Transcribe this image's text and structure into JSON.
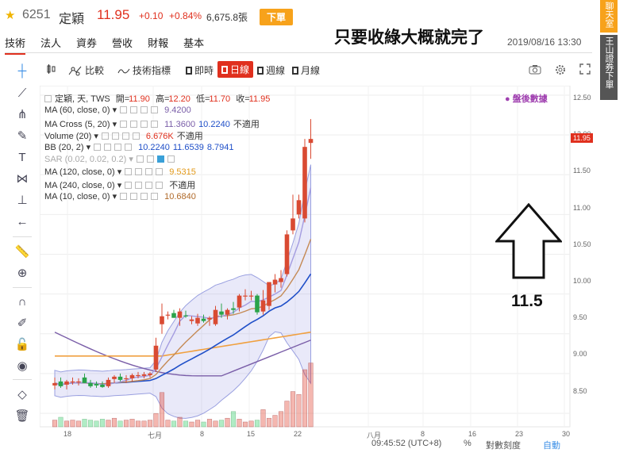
{
  "header": {
    "code": "6251",
    "name": "定穎",
    "price": "11.95",
    "change": "+0.10",
    "change_pct": "+0.84%",
    "volume": "6,675.8張",
    "order_button": "下單"
  },
  "tabs": [
    {
      "label": "技術",
      "active": true
    },
    {
      "label": "法人"
    },
    {
      "label": "資券"
    },
    {
      "label": "營收"
    },
    {
      "label": "財報"
    },
    {
      "label": "基本"
    }
  ],
  "annotation": {
    "title": "只要收綠大概就完了",
    "value": "11.5"
  },
  "datetime": "2019/08/16 13:30",
  "toolbar": {
    "compare": "比較",
    "indicators": "技術指標",
    "intraday": "即時",
    "daily": "日線",
    "weekly": "週線",
    "monthly": "月線"
  },
  "right_sidebar": {
    "chat": "聊天室",
    "broker": "王山證券下單"
  },
  "ohlc_line": {
    "name": "定穎, 天, TWS",
    "open_label": "開=",
    "open": "11.90",
    "high_label": "高=",
    "high": "12.20",
    "low_label": "低=",
    "low": "11.70",
    "close_label": "收=",
    "close": "11.95"
  },
  "after_hours_label": "盤後數據",
  "indicators": [
    {
      "name": "MA (60, close, 0)",
      "values": [
        "9.4200"
      ],
      "colors": [
        "#7a5ea8"
      ]
    },
    {
      "name": "MA Cross (5, 20)",
      "values": [
        "11.3600",
        "10.2240",
        "不適用"
      ],
      "colors": [
        "#7a5ea8",
        "#1f4fc8",
        "#333333"
      ]
    },
    {
      "name": "Volume (20)",
      "values": [
        "6.676K",
        "不適用"
      ],
      "colors": [
        "#e0301e",
        "#333333"
      ]
    },
    {
      "name": "BB (20, 2)",
      "values": [
        "10.2240",
        "11.6539",
        "8.7941"
      ],
      "colors": [
        "#1f4fc8",
        "#1f4fc8",
        "#1f4fc8"
      ]
    },
    {
      "name": "SAR (0.02, 0.02, 0.2)",
      "values": [],
      "colors": [],
      "muted": true
    },
    {
      "name": "MA (120, close, 0)",
      "values": [
        "9.5315"
      ],
      "colors": [
        "#e39a1a"
      ]
    },
    {
      "name": "MA (240, close, 0)",
      "values": [
        "不適用"
      ],
      "colors": [
        "#333333"
      ]
    },
    {
      "name": "MA (10, close, 0)",
      "values": [
        "10.6840"
      ],
      "colors": [
        "#b06a2a"
      ]
    }
  ],
  "y_axis": [
    "12.50",
    "12.00",
    "11.50",
    "11.00",
    "10.50",
    "10.00",
    "9.50",
    "9.00",
    "8.50"
  ],
  "price_badge": "11.95",
  "x_axis": [
    "18",
    "七月",
    "8",
    "15",
    "22",
    "八月",
    "8",
    "16",
    "23",
    "30"
  ],
  "bottom": {
    "time": "09:45:52 (UTC+8)",
    "percent": "%",
    "log": "對數刻度",
    "auto": "自動"
  },
  "candles": [
    {
      "o": 8.85,
      "h": 8.95,
      "l": 8.8,
      "c": 8.88
    },
    {
      "o": 8.9,
      "h": 8.95,
      "l": 8.82,
      "c": 8.84
    },
    {
      "o": 8.86,
      "h": 8.92,
      "l": 8.8,
      "c": 8.9
    },
    {
      "o": 8.9,
      "h": 8.95,
      "l": 8.86,
      "c": 8.9
    },
    {
      "o": 8.89,
      "h": 8.94,
      "l": 8.85,
      "c": 8.9
    },
    {
      "o": 8.95,
      "h": 9.0,
      "l": 8.88,
      "c": 8.88
    },
    {
      "o": 8.88,
      "h": 8.92,
      "l": 8.82,
      "c": 8.84
    },
    {
      "o": 8.87,
      "h": 8.9,
      "l": 8.82,
      "c": 8.85
    },
    {
      "o": 8.86,
      "h": 8.9,
      "l": 8.82,
      "c": 8.83
    },
    {
      "o": 8.84,
      "h": 8.95,
      "l": 8.82,
      "c": 8.92
    },
    {
      "o": 8.93,
      "h": 8.98,
      "l": 8.88,
      "c": 8.96
    },
    {
      "o": 8.96,
      "h": 9.0,
      "l": 8.9,
      "c": 8.92
    },
    {
      "o": 8.93,
      "h": 8.98,
      "l": 8.88,
      "c": 8.94
    },
    {
      "o": 8.94,
      "h": 9.0,
      "l": 8.9,
      "c": 8.98
    },
    {
      "o": 8.98,
      "h": 9.02,
      "l": 8.94,
      "c": 8.98
    },
    {
      "o": 8.97,
      "h": 9.02,
      "l": 8.94,
      "c": 8.99
    },
    {
      "o": 8.98,
      "h": 9.02,
      "l": 8.95,
      "c": 9.0
    },
    {
      "o": 9.05,
      "h": 9.45,
      "l": 9.02,
      "c": 9.35
    },
    {
      "o": 9.62,
      "h": 9.88,
      "l": 9.5,
      "c": 9.72
    },
    {
      "o": 9.73,
      "h": 9.78,
      "l": 9.68,
      "c": 9.74
    },
    {
      "o": 9.76,
      "h": 9.8,
      "l": 9.7,
      "c": 9.7
    },
    {
      "o": 9.7,
      "h": 9.82,
      "l": 9.6,
      "c": 9.78
    },
    {
      "o": 9.73,
      "h": 9.79,
      "l": 9.7,
      "c": 9.72
    },
    {
      "o": 9.66,
      "h": 9.72,
      "l": 9.62,
      "c": 9.68
    },
    {
      "o": 9.63,
      "h": 9.75,
      "l": 9.6,
      "c": 9.7
    },
    {
      "o": 9.69,
      "h": 9.74,
      "l": 9.64,
      "c": 9.66
    },
    {
      "o": 9.68,
      "h": 9.72,
      "l": 9.6,
      "c": 9.7
    },
    {
      "o": 9.62,
      "h": 9.85,
      "l": 9.6,
      "c": 9.8
    },
    {
      "o": 9.78,
      "h": 9.88,
      "l": 9.7,
      "c": 9.74
    },
    {
      "o": 9.74,
      "h": 9.82,
      "l": 9.68,
      "c": 9.8
    },
    {
      "o": 9.82,
      "h": 9.9,
      "l": 9.75,
      "c": 9.8
    },
    {
      "o": 9.83,
      "h": 10.0,
      "l": 9.78,
      "c": 9.98
    },
    {
      "o": 9.98,
      "h": 10.06,
      "l": 9.92,
      "c": 9.98
    },
    {
      "o": 9.98,
      "h": 10.04,
      "l": 9.92,
      "c": 9.98
    },
    {
      "o": 9.98,
      "h": 10.0,
      "l": 9.74,
      "c": 9.77
    },
    {
      "o": 9.78,
      "h": 10.05,
      "l": 9.74,
      "c": 9.92
    },
    {
      "o": 9.85,
      "h": 10.15,
      "l": 9.8,
      "c": 10.15
    },
    {
      "o": 10.12,
      "h": 10.25,
      "l": 10.02,
      "c": 10.18
    },
    {
      "o": 10.15,
      "h": 10.3,
      "l": 10.08,
      "c": 10.2
    },
    {
      "o": 10.25,
      "h": 10.8,
      "l": 10.22,
      "c": 10.75
    },
    {
      "o": 10.8,
      "h": 11.25,
      "l": 10.75,
      "c": 10.95
    },
    {
      "o": 11.0,
      "h": 11.25,
      "l": 10.95,
      "c": 11.18
    },
    {
      "o": 10.95,
      "h": 11.95,
      "l": 10.9,
      "c": 11.85
    },
    {
      "o": 11.9,
      "h": 12.2,
      "l": 11.7,
      "c": 11.95
    }
  ],
  "volumes": [
    0.7,
    1.0,
    0.6,
    0.7,
    0.6,
    0.8,
    0.7,
    0.6,
    0.8,
    0.7,
    0.9,
    0.6,
    0.7,
    0.8,
    0.6,
    0.6,
    0.7,
    1.4,
    3.6,
    0.7,
    0.6,
    1.0,
    0.6,
    0.5,
    0.7,
    0.5,
    0.8,
    0.6,
    0.7,
    0.9,
    1.6,
    0.8,
    0.5,
    0.6,
    0.7,
    1.8,
    0.9,
    1.2,
    1.6,
    2.7,
    3.7,
    3.4,
    6.0,
    6.7
  ]
}
